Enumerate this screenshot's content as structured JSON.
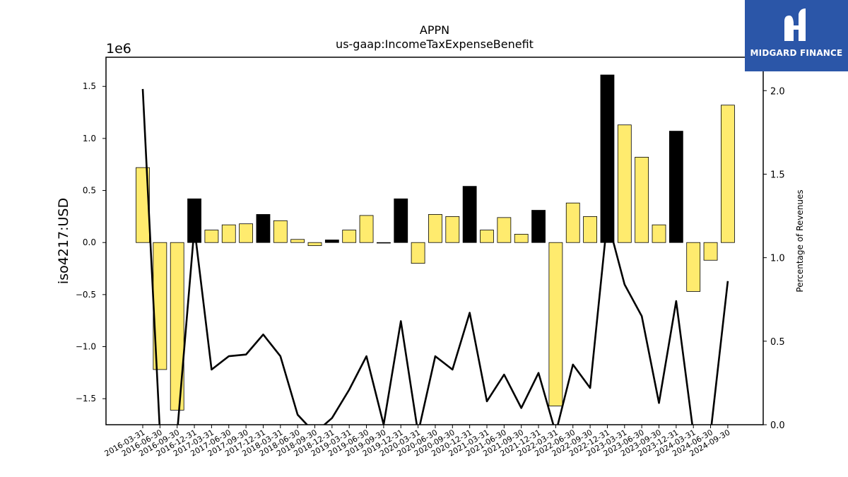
{
  "brand": {
    "name": "MIDGARD FINANCE",
    "bg_color": "#2b56a8"
  },
  "chart_data": {
    "type": "bar",
    "title": "APPN",
    "subtitle": "us-gaap:IncomeTaxExpenseBenefit",
    "ylabel": "iso4217:USD",
    "ylabel_right": "Percentage of Revenues",
    "y_scale_label": "1e6",
    "ylim": [
      -1.75,
      1.78
    ],
    "ylim_right": [
      0.0,
      2.2
    ],
    "yticks": [
      -1.5,
      -1.0,
      -0.5,
      0.0,
      0.5,
      1.0,
      1.5
    ],
    "yticks_right": [
      0.0,
      0.5,
      1.0,
      1.5,
      2.0
    ],
    "colors": {
      "positive": "#ffeb6e",
      "negative_change": "#000000",
      "line": "#000000"
    },
    "categories": [
      "2016-03-31",
      "2016-06-30",
      "2016-09-30",
      "2016-12-31",
      "2017-03-31",
      "2017-06-30",
      "2017-09-30",
      "2017-12-31",
      "2018-03-31",
      "2018-06-30",
      "2018-09-30",
      "2018-12-31",
      "2019-03-31",
      "2019-06-30",
      "2019-09-30",
      "2019-12-31",
      "2020-03-31",
      "2020-06-30",
      "2020-09-30",
      "2020-12-31",
      "2021-03-31",
      "2021-06-30",
      "2021-09-30",
      "2021-12-31",
      "2022-03-31",
      "2022-06-30",
      "2022-09-30",
      "2022-12-31",
      "2023-03-31",
      "2023-06-30",
      "2023-09-30",
      "2023-12-31",
      "2024-03-31",
      "2024-06-30",
      "2024-09-30"
    ],
    "series": [
      {
        "kind": "bar",
        "values": [
          0.72,
          -1.22,
          -1.61,
          0.42,
          0.12,
          0.17,
          0.18,
          0.27,
          0.21,
          0.03,
          -0.03,
          0.025,
          0.12,
          0.26,
          0.0,
          0.42,
          -0.2,
          0.27,
          0.25,
          0.54,
          0.12,
          0.24,
          0.08,
          0.31,
          -1.57,
          0.38,
          0.25,
          1.61,
          1.13,
          0.82,
          0.17,
          1.07,
          -0.47,
          -0.17,
          1.32
        ],
        "highlight": [
          false,
          false,
          false,
          true,
          false,
          false,
          false,
          true,
          false,
          false,
          false,
          true,
          false,
          false,
          false,
          true,
          false,
          false,
          false,
          true,
          false,
          false,
          false,
          true,
          false,
          false,
          false,
          true,
          false,
          false,
          false,
          true,
          false,
          false,
          false
        ]
      },
      {
        "kind": "line",
        "axis": "right",
        "values": [
          2.01,
          -0.05,
          -0.05,
          1.18,
          0.33,
          0.41,
          0.42,
          0.54,
          0.41,
          0.06,
          -0.05,
          0.04,
          0.21,
          0.41,
          0.0,
          0.62,
          -0.05,
          0.41,
          0.33,
          0.67,
          0.14,
          0.3,
          0.1,
          0.31,
          -0.05,
          0.36,
          0.22,
          1.23,
          0.84,
          0.65,
          0.13,
          0.74,
          -0.05,
          -0.05,
          0.86
        ]
      }
    ]
  }
}
